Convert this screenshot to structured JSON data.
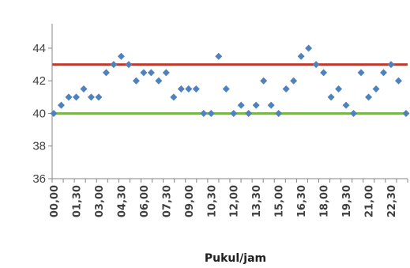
{
  "chart_data": {
    "type": "scatter",
    "title": "",
    "xlabel": "Pukul/jam",
    "ylabel": "",
    "ylim": [
      36,
      45.5
    ],
    "yticks": [
      36,
      38,
      40,
      42,
      44
    ],
    "grid": false,
    "x_tick_labels": [
      "00,00",
      "01,30",
      "03,00",
      "04,30",
      "06,00",
      "07,30",
      "09,00",
      "10,30",
      "12,00",
      "13,30",
      "15,00",
      "16,30",
      "18,00",
      "19,30",
      "21,00",
      "22,30"
    ],
    "series": [
      {
        "color": "#4f81bd",
        "marker": "diamond",
        "x": [
          "00,00",
          "00,30",
          "01,00",
          "01,30",
          "02,00",
          "02,30",
          "03,00",
          "03,30",
          "04,00",
          "04,30",
          "05,00",
          "05,30",
          "06,00",
          "06,30",
          "07,00",
          "07,30",
          "08,00",
          "08,30",
          "09,00",
          "09,30",
          "10,00",
          "10,30",
          "11,00",
          "11,30",
          "12,00",
          "12,30",
          "13,00",
          "13,30",
          "14,00",
          "14,30",
          "15,00",
          "15,30",
          "16,00",
          "16,30",
          "17,00",
          "17,30",
          "18,00",
          "18,30",
          "19,00",
          "19,30",
          "20,00",
          "20,30",
          "21,00",
          "21,30",
          "22,00",
          "22,30",
          "23,00",
          "23,30"
        ],
        "values": [
          40,
          40.5,
          41,
          41,
          41.5,
          41,
          41,
          42.5,
          43,
          43.5,
          43,
          42,
          42.5,
          42.5,
          42,
          42.5,
          41,
          41.5,
          41.5,
          41.5,
          40,
          40,
          43.5,
          41.5,
          40,
          40.5,
          40,
          40.5,
          42,
          40.5,
          40,
          41.5,
          42,
          43.5,
          44,
          43,
          42.5,
          41,
          41.5,
          40.5,
          40,
          42.5,
          41,
          41.5,
          42.5,
          43,
          42,
          40
        ]
      }
    ],
    "reference_lines": [
      {
        "value": 43,
        "color": "#c0392b"
      },
      {
        "value": 40,
        "color": "#7ab648"
      }
    ]
  }
}
